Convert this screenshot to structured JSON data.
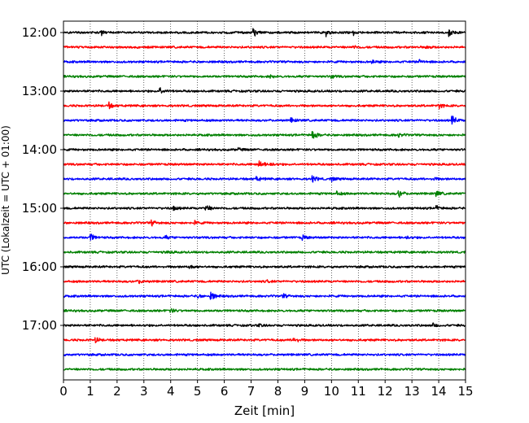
{
  "chart_data": {
    "type": "line",
    "title": "",
    "xlabel": "Zeit  [min]",
    "ylabel": "UTC (Lokalzeit = UTC + 01:00)",
    "xlim": [
      0,
      15
    ],
    "x_ticks": [
      "0",
      "1",
      "2",
      "3",
      "4",
      "5",
      "6",
      "7",
      "8",
      "9",
      "10",
      "11",
      "12",
      "13",
      "14",
      "15"
    ],
    "y_ticks": [
      "12:00",
      "13:00",
      "14:00",
      "15:00",
      "16:00",
      "17:00"
    ],
    "grid": "vertical dotted",
    "color_cycle": [
      "#000000",
      "#ff0000",
      "#0000ff",
      "#008000"
    ],
    "traces": [
      {
        "start": "11:45",
        "color": "#000000",
        "events": [
          [
            1.4,
            0.7
          ],
          [
            7.1,
            1.0
          ],
          [
            9.8,
            0.8
          ],
          [
            10.8,
            0.7
          ],
          [
            14.4,
            0.8
          ]
        ]
      },
      {
        "start": "12:00",
        "color": "#ff0000",
        "events": [
          [
            10.8,
            0.4
          ],
          [
            13.5,
            0.4
          ]
        ]
      },
      {
        "start": "12:15",
        "color": "#0000ff",
        "events": [
          [
            11.5,
            0.4
          ],
          [
            13.3,
            0.4
          ]
        ]
      },
      {
        "start": "12:30",
        "color": "#008000",
        "events": [
          [
            7.7,
            0.4
          ],
          [
            10.0,
            0.4
          ]
        ]
      },
      {
        "start": "12:45",
        "color": "#000000",
        "events": [
          [
            3.6,
            0.9
          ]
        ]
      },
      {
        "start": "13:00",
        "color": "#ff0000",
        "events": [
          [
            1.7,
            0.7
          ],
          [
            14.0,
            0.6
          ]
        ]
      },
      {
        "start": "13:15",
        "color": "#0000ff",
        "events": [
          [
            8.5,
            0.6
          ],
          [
            14.5,
            1.2
          ]
        ]
      },
      {
        "start": "13:30",
        "color": "#008000",
        "events": [
          [
            9.3,
            1.2
          ],
          [
            12.5,
            0.4
          ]
        ]
      },
      {
        "start": "13:45",
        "color": "#000000",
        "events": [
          [
            6.5,
            0.4
          ]
        ]
      },
      {
        "start": "14:00",
        "color": "#ff0000",
        "events": [
          [
            7.3,
            1.2
          ],
          [
            7.7,
            0.6
          ]
        ]
      },
      {
        "start": "14:15",
        "color": "#0000ff",
        "events": [
          [
            7.2,
            0.6
          ],
          [
            9.3,
            0.8
          ],
          [
            10.0,
            0.5
          ],
          [
            13.8,
            0.4
          ]
        ]
      },
      {
        "start": "14:30",
        "color": "#008000",
        "events": [
          [
            10.2,
            0.5
          ],
          [
            12.5,
            1.0
          ],
          [
            13.9,
            0.8
          ]
        ]
      },
      {
        "start": "14:45",
        "color": "#000000",
        "events": [
          [
            4.1,
            0.6
          ],
          [
            5.3,
            1.1
          ],
          [
            13.9,
            0.6
          ]
        ]
      },
      {
        "start": "15:00",
        "color": "#ff0000",
        "events": [
          [
            3.3,
            0.6
          ],
          [
            4.9,
            0.4
          ]
        ]
      },
      {
        "start": "15:15",
        "color": "#0000ff",
        "events": [
          [
            1.0,
            1.0
          ],
          [
            3.8,
            0.4
          ],
          [
            8.9,
            0.6
          ],
          [
            12.8,
            0.4
          ]
        ]
      },
      {
        "start": "15:30",
        "color": "#008000",
        "events": [
          [
            3.9,
            0.3
          ]
        ]
      },
      {
        "start": "15:45",
        "color": "#000000",
        "events": [
          [
            4.7,
            0.6
          ]
        ]
      },
      {
        "start": "16:00",
        "color": "#ff0000",
        "events": [
          [
            2.8,
            0.5
          ],
          [
            7.6,
            0.3
          ]
        ]
      },
      {
        "start": "16:15",
        "color": "#0000ff",
        "events": [
          [
            5.0,
            0.5
          ],
          [
            5.5,
            1.1
          ],
          [
            8.2,
            0.5
          ]
        ]
      },
      {
        "start": "16:30",
        "color": "#008000",
        "events": [
          [
            4.0,
            0.5
          ]
        ]
      },
      {
        "start": "16:45",
        "color": "#000000",
        "events": [
          [
            7.3,
            0.3
          ],
          [
            13.8,
            0.4
          ]
        ]
      },
      {
        "start": "17:00",
        "color": "#ff0000",
        "events": [
          [
            1.2,
            0.6
          ],
          [
            8.6,
            0.8
          ]
        ]
      },
      {
        "start": "17:15",
        "color": "#0000ff",
        "events": []
      },
      {
        "start": "17:30",
        "color": "#008000",
        "events": []
      }
    ]
  }
}
